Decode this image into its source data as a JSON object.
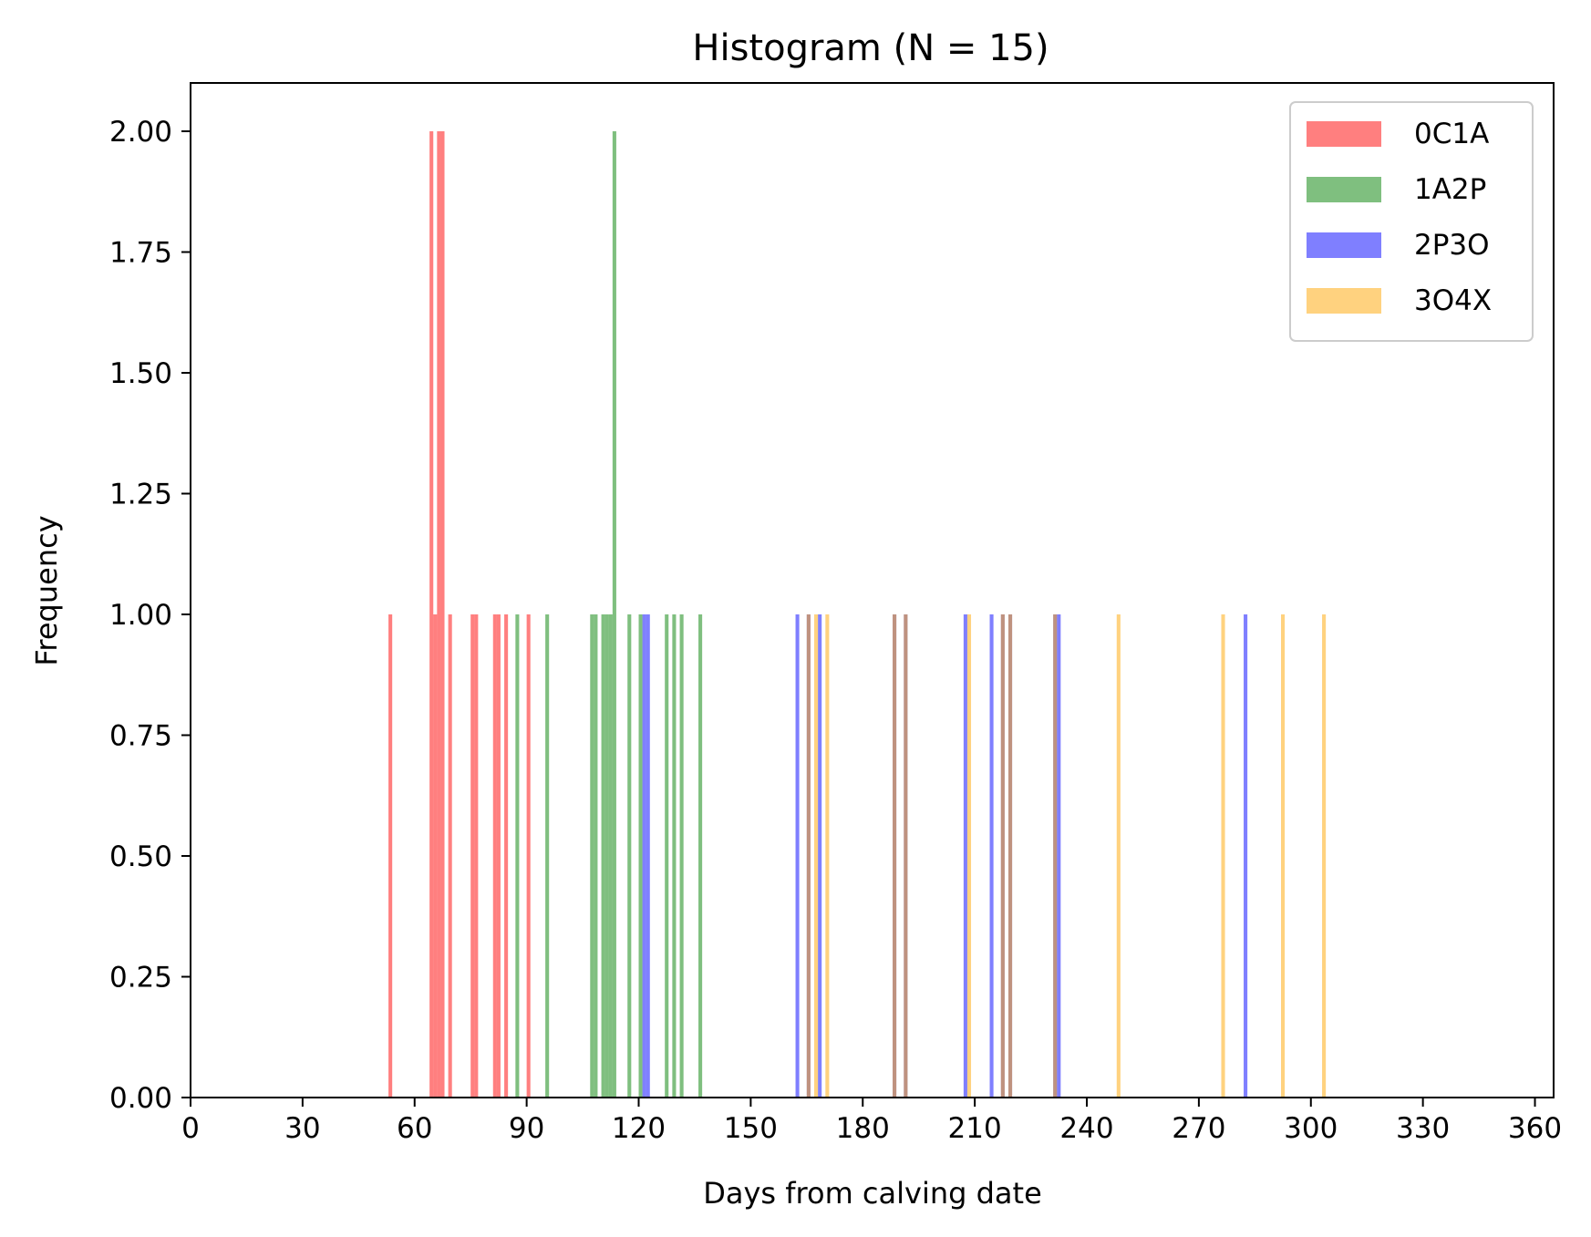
{
  "chart_data": {
    "type": "bar",
    "title": "Histogram (N = 15)",
    "xlabel": "Days from calving date",
    "ylabel": "Frequency",
    "xlim": [
      0,
      365
    ],
    "ylim": [
      0,
      2.1
    ],
    "bin_width": 1,
    "x_ticks": [
      0,
      30,
      60,
      90,
      120,
      150,
      180,
      210,
      240,
      270,
      300,
      330,
      360
    ],
    "y_ticks": [
      0.0,
      0.25,
      0.5,
      0.75,
      1.0,
      1.25,
      1.5,
      1.75,
      2.0
    ],
    "y_tick_labels": [
      "0.00",
      "0.25",
      "0.50",
      "0.75",
      "1.00",
      "1.25",
      "1.50",
      "1.75",
      "2.00"
    ],
    "grid": false,
    "legend_position": "top-right",
    "series": [
      {
        "name": "0C1A",
        "color": "#ff0000",
        "opacity": 0.5,
        "bars": [
          {
            "x": 53,
            "count": 1
          },
          {
            "x": 64,
            "count": 2
          },
          {
            "x": 65,
            "count": 1
          },
          {
            "x": 66,
            "count": 2
          },
          {
            "x": 67,
            "count": 2
          },
          {
            "x": 69,
            "count": 1
          },
          {
            "x": 75,
            "count": 1
          },
          {
            "x": 76,
            "count": 1
          },
          {
            "x": 81,
            "count": 1
          },
          {
            "x": 82,
            "count": 1
          },
          {
            "x": 84,
            "count": 1
          },
          {
            "x": 90,
            "count": 1
          }
        ]
      },
      {
        "name": "1A2P",
        "color": "#008000",
        "opacity": 0.5,
        "bars": [
          {
            "x": 87,
            "count": 1
          },
          {
            "x": 95,
            "count": 1
          },
          {
            "x": 107,
            "count": 1
          },
          {
            "x": 108,
            "count": 1
          },
          {
            "x": 110,
            "count": 1
          },
          {
            "x": 111,
            "count": 1
          },
          {
            "x": 112,
            "count": 1
          },
          {
            "x": 113,
            "count": 2
          },
          {
            "x": 117,
            "count": 1
          },
          {
            "x": 120,
            "count": 1
          },
          {
            "x": 127,
            "count": 1
          },
          {
            "x": 129,
            "count": 1
          },
          {
            "x": 131,
            "count": 1
          },
          {
            "x": 136,
            "count": 1
          }
        ]
      },
      {
        "name": "2P3O",
        "color": "#0000ff",
        "opacity": 0.5,
        "bars": [
          {
            "x": 121,
            "count": 1
          },
          {
            "x": 122,
            "count": 1
          },
          {
            "x": 162,
            "count": 1
          },
          {
            "x": 165,
            "count": 1
          },
          {
            "x": 168,
            "count": 1
          },
          {
            "x": 188,
            "count": 1
          },
          {
            "x": 191,
            "count": 1
          },
          {
            "x": 207,
            "count": 1
          },
          {
            "x": 214,
            "count": 1
          },
          {
            "x": 217,
            "count": 1
          },
          {
            "x": 219,
            "count": 1
          },
          {
            "x": 231,
            "count": 1
          },
          {
            "x": 232,
            "count": 1
          },
          {
            "x": 282,
            "count": 1
          }
        ]
      },
      {
        "name": "3O4X",
        "color": "#ffa500",
        "opacity": 0.5,
        "bars": [
          {
            "x": 165,
            "count": 1
          },
          {
            "x": 167,
            "count": 1
          },
          {
            "x": 170,
            "count": 1
          },
          {
            "x": 188,
            "count": 1
          },
          {
            "x": 191,
            "count": 1
          },
          {
            "x": 208,
            "count": 1
          },
          {
            "x": 217,
            "count": 1
          },
          {
            "x": 219,
            "count": 1
          },
          {
            "x": 231,
            "count": 1
          },
          {
            "x": 248,
            "count": 1
          },
          {
            "x": 276,
            "count": 1
          },
          {
            "x": 292,
            "count": 1
          },
          {
            "x": 303,
            "count": 1
          }
        ]
      }
    ]
  }
}
